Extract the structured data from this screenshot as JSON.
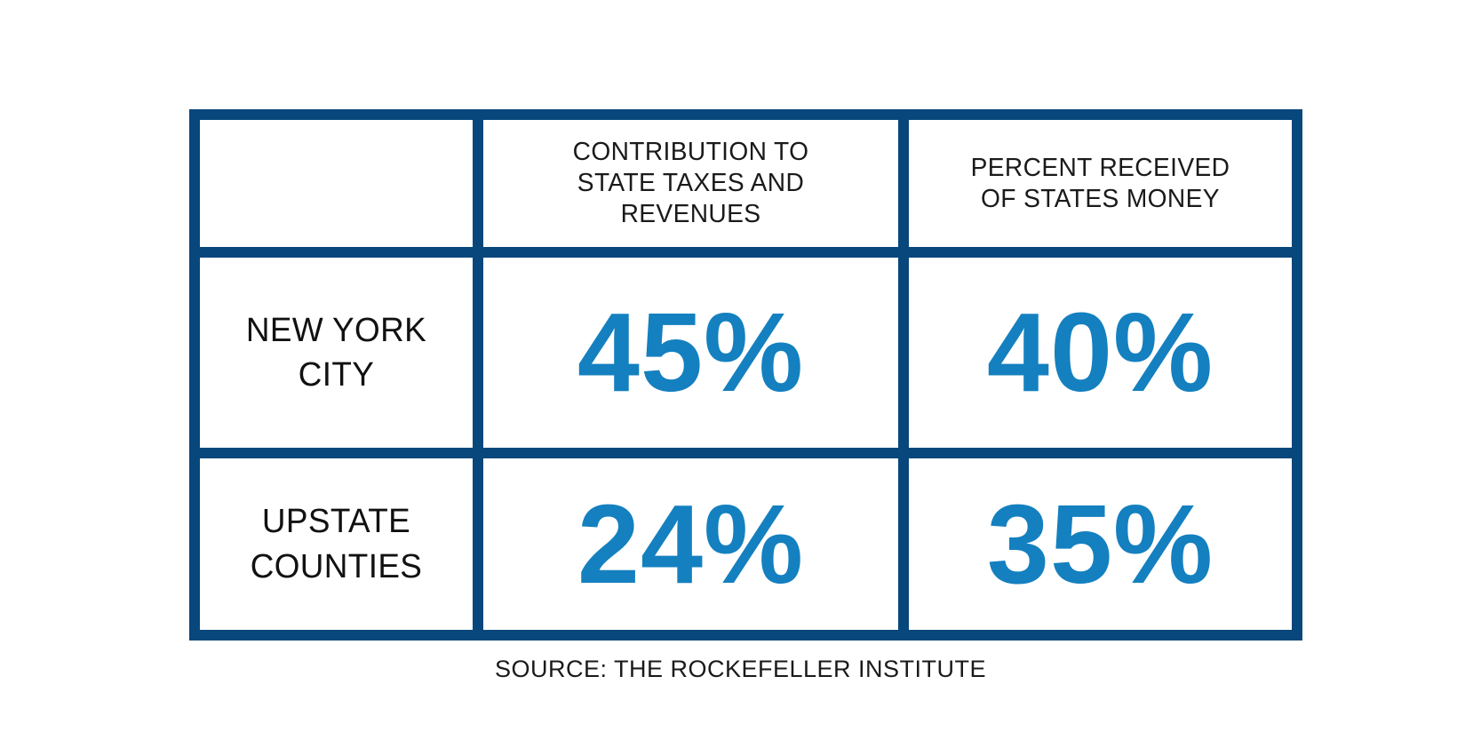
{
  "chart_data": {
    "type": "table",
    "columns": [
      "",
      "CONTRIBUTION TO STATE TAXES AND REVENUES",
      "PERCENT RECEIVED OF STATES MONEY"
    ],
    "rows": [
      {
        "label": "NEW YORK CITY",
        "values": [
          45,
          40
        ]
      },
      {
        "label": "UPSTATE COUNTIES",
        "values": [
          24,
          35
        ]
      }
    ],
    "units": "percent",
    "source": "SOURCE: THE ROCKEFELLER INSTITUTE"
  },
  "header": {
    "corner": "",
    "contribution": "CONTRIBUTION TO\nSTATE TAXES AND\nREVENUES",
    "received": "PERCENT RECEIVED\nOF STATES MONEY"
  },
  "rows": {
    "nyc": {
      "label": "NEW YORK\nCITY",
      "contribution": "45%",
      "received": "40%"
    },
    "upstate": {
      "label": "UPSTATE\nCOUNTIES",
      "contribution": "24%",
      "received": "35%"
    }
  },
  "source_note": "SOURCE: THE ROCKEFELLER INSTITUTE",
  "colors": {
    "border_navy": "#07477B",
    "value_blue": "#1480BF",
    "text_black": "#1A1A1A",
    "background": "#FFFFFF"
  }
}
